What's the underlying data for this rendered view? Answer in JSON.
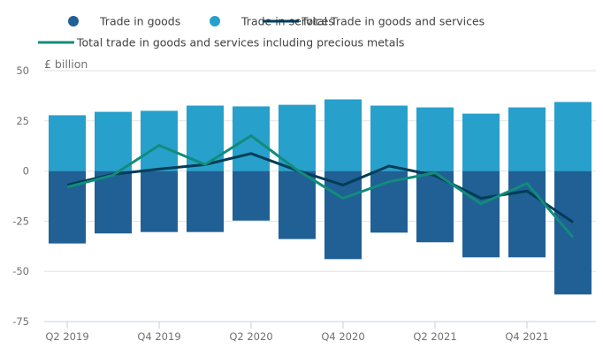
{
  "chart_data": {
    "type": "bar",
    "title": "",
    "xlabel": "",
    "ylabel": "£ billion",
    "ylim": [
      -75,
      50
    ],
    "yticks": [
      50,
      25,
      0,
      -25,
      -50,
      -75
    ],
    "ytick_labels": [
      "50",
      "25",
      "0",
      "-25",
      "-50",
      "-75"
    ],
    "grid": true,
    "stacked": true,
    "legend_position": "top",
    "categories": [
      "Q2 2019",
      "Q3 2019",
      "Q4 2019",
      "Q1 2020",
      "Q2 2020",
      "Q3 2020",
      "Q4 2020",
      "Q1 2021",
      "Q2 2021",
      "Q3 2021",
      "Q4 2021",
      "Q1 2022"
    ],
    "xtick_labels": [
      "Q2 2019",
      "",
      "Q4 2019",
      "",
      "Q2 2020",
      "",
      "Q4 2020",
      "",
      "Q2 2021",
      "",
      "Q4 2021",
      ""
    ],
    "series": [
      {
        "name": "Trade in goods",
        "kind": "bar",
        "color": "#206095",
        "values": [
          -36.1,
          -31.1,
          -30.4,
          -30.4,
          -24.7,
          -33.9,
          -43.9,
          -30.7,
          -35.5,
          -43.0,
          -43.0,
          -61.5
        ]
      },
      {
        "name": "Trade in services",
        "kind": "bar",
        "color": "#27a0cc",
        "values": [
          27.8,
          29.5,
          30.0,
          32.6,
          32.2,
          33.0,
          35.7,
          32.6,
          31.7,
          28.6,
          31.7,
          34.4
        ]
      },
      {
        "name": "Total Trade in goods and services",
        "kind": "line",
        "color": "#003c57",
        "values": [
          -7.0,
          -1.6,
          1.0,
          3.2,
          8.7,
          0.3,
          -7.0,
          2.5,
          -2.2,
          -13.6,
          -10.0,
          -25.5
        ]
      },
      {
        "name": "Total trade in goods and services including precious metals",
        "kind": "line",
        "color": "#118c7b",
        "values": [
          -8.0,
          -2.0,
          12.8,
          3.2,
          17.6,
          0.5,
          -13.6,
          -5.3,
          -0.9,
          -16.3,
          -6.2,
          -33.0
        ]
      }
    ]
  }
}
